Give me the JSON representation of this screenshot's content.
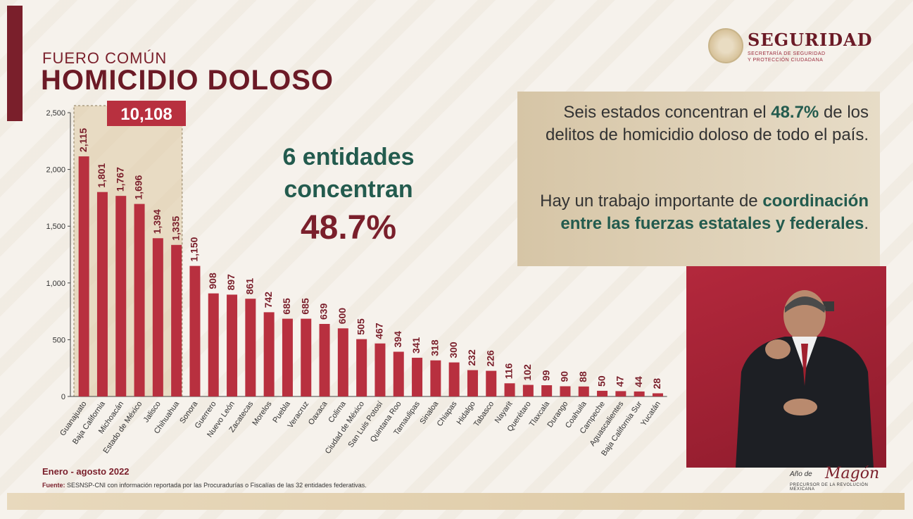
{
  "header": {
    "subtitle": "FUERO COMÚN",
    "title": "HOMICIDIO DOLOSO"
  },
  "logo": {
    "title": "SEGURIDAD",
    "subtitle_line1": "SECRETARÍA DE SEGURIDAD",
    "subtitle_line2": "Y PROTECCIÓN CIUDADANA"
  },
  "highlight": {
    "line1": "6 entidades",
    "line2": "concentran",
    "percent": "48.7%"
  },
  "info": {
    "p1_a": "Seis estados concentran el ",
    "p1_hl": "48.7%",
    "p1_b": " de los delitos de homicidio doloso de todo el país.",
    "p2_a": "Hay un trabajo importante de ",
    "p2_hl": "coordinación entre las fuerzas estatales y federales",
    "p2_b": "."
  },
  "footer": {
    "period": "Enero - agosto 2022",
    "source_label": "Fuente:",
    "source_text": " SESNSP-CNI con información reportada por las Procuradurías o Fiscalías de las 32 entidades federativas."
  },
  "year_logo": {
    "line1": "Año de",
    "line2": "Magón",
    "line3": "PRECURSOR DE LA REVOLUCIÓN MEXICANA"
  },
  "chart_data": {
    "type": "bar",
    "ylim": [
      0,
      2500
    ],
    "yticks": [
      0,
      500,
      1000,
      1500,
      2000,
      2500
    ],
    "ytick_labels": [
      "0",
      "500",
      "1,000",
      "1,500",
      "2,000",
      "2,500"
    ],
    "grid": false,
    "bar_color": "#b8303f",
    "highlight_total": "10,108",
    "highlight_count": 6,
    "categories": [
      "Guanajuato",
      "Baja California",
      "Michoacán",
      "Estado de México",
      "Jalisco",
      "Chihuahua",
      "Sonora",
      "Guerrero",
      "Nuevo León",
      "Zacatecas",
      "Morelos",
      "Puebla",
      "Veracruz",
      "Oaxaca",
      "Colima",
      "Ciudad de México",
      "San Luis Potosí",
      "Quintana Roo",
      "Tamaulipas",
      "Sinaloa",
      "Chiapas",
      "Hidalgo",
      "Tabasco",
      "Nayarit",
      "Querétaro",
      "Tlaxcala",
      "Durango",
      "Coahuila",
      "Campeche",
      "Aguascalientes",
      "Baja California Sur",
      "Yucatán"
    ],
    "values": [
      2115,
      1801,
      1767,
      1696,
      1394,
      1335,
      1150,
      908,
      897,
      861,
      742,
      685,
      685,
      639,
      600,
      505,
      467,
      394,
      341,
      318,
      300,
      232,
      226,
      116,
      102,
      99,
      90,
      88,
      50,
      47,
      44,
      28
    ],
    "value_labels": [
      "2,115",
      "1,801",
      "1,767",
      "1,696",
      "1,394",
      "1,335",
      "1,150",
      "908",
      "897",
      "861",
      "742",
      "685",
      "685",
      "639",
      "600",
      "505",
      "467",
      "394",
      "341",
      "318",
      "300",
      "232",
      "226",
      "116",
      "102",
      "99",
      "90",
      "88",
      "50",
      "47",
      "44",
      "28"
    ]
  }
}
